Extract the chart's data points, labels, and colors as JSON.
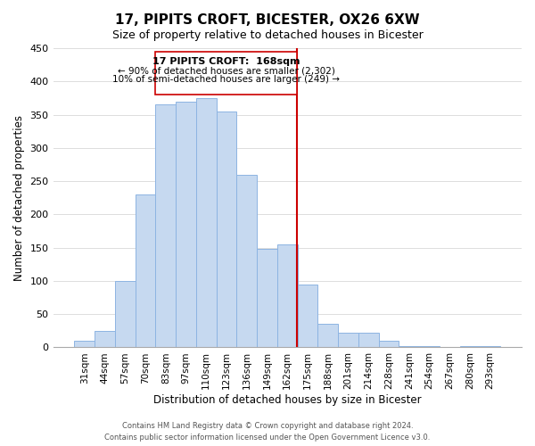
{
  "title": "17, PIPITS CROFT, BICESTER, OX26 6XW",
  "subtitle": "Size of property relative to detached houses in Bicester",
  "xlabel": "Distribution of detached houses by size in Bicester",
  "ylabel": "Number of detached properties",
  "bin_labels": [
    "31sqm",
    "44sqm",
    "57sqm",
    "70sqm",
    "83sqm",
    "97sqm",
    "110sqm",
    "123sqm",
    "136sqm",
    "149sqm",
    "162sqm",
    "175sqm",
    "188sqm",
    "201sqm",
    "214sqm",
    "228sqm",
    "241sqm",
    "254sqm",
    "267sqm",
    "280sqm",
    "293sqm"
  ],
  "bar_heights": [
    10,
    25,
    100,
    230,
    365,
    370,
    375,
    355,
    260,
    148,
    155,
    95,
    35,
    22,
    22,
    10,
    2,
    2,
    0,
    2,
    2
  ],
  "bar_color": "#c6d9f0",
  "bar_edge_color": "#8db4e2",
  "vline_color": "#cc0000",
  "annotation_title": "17 PIPITS CROFT:  168sqm",
  "annotation_line1": "← 90% of detached houses are smaller (2,302)",
  "annotation_line2": "10% of semi-detached houses are larger (249) →",
  "annotation_box_color": "#ffffff",
  "annotation_box_edge": "#cc0000",
  "footer_line1": "Contains HM Land Registry data © Crown copyright and database right 2024.",
  "footer_line2": "Contains public sector information licensed under the Open Government Licence v3.0.",
  "ylim": [
    0,
    450
  ],
  "background_color": "#ffffff",
  "grid_color": "#dddddd"
}
